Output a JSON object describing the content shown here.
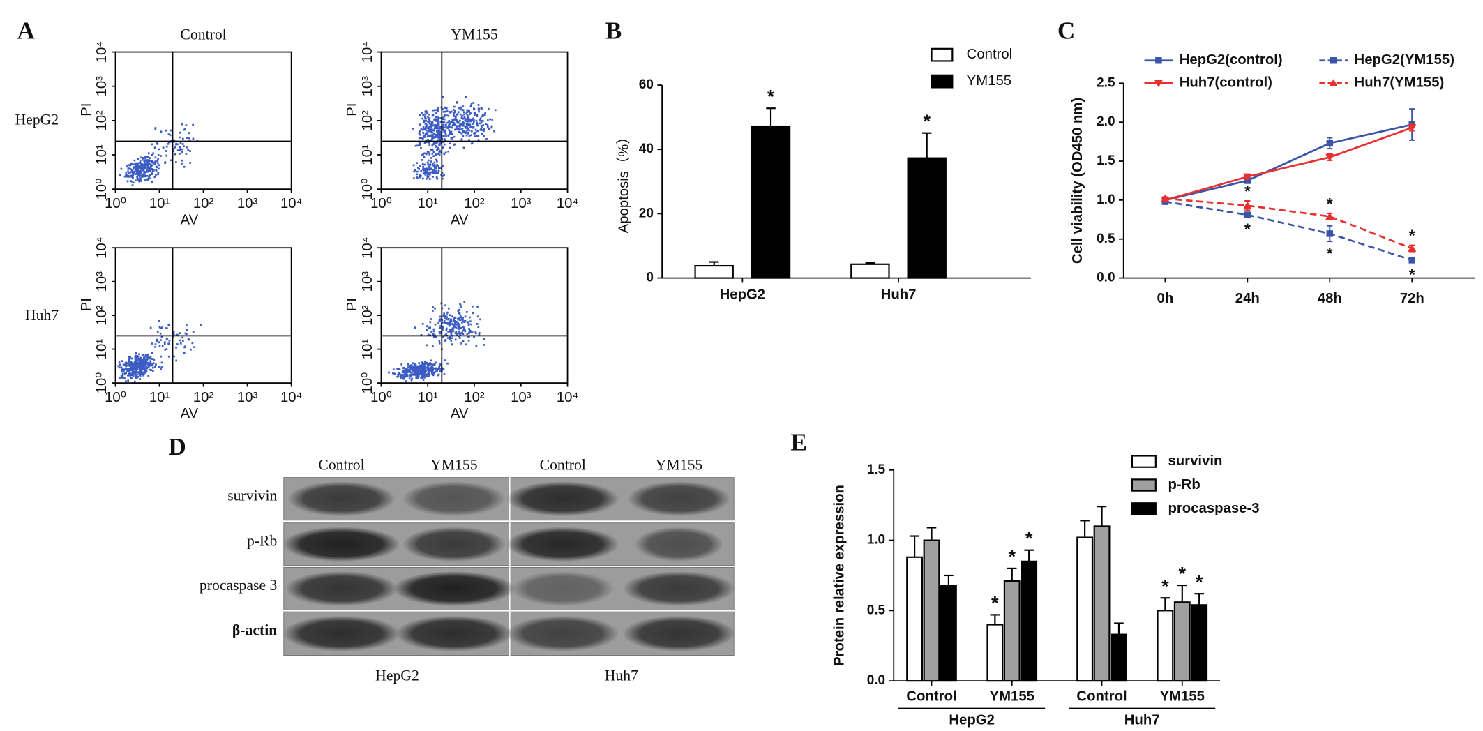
{
  "chart_data": [
    {
      "panel": "A",
      "type": "flow",
      "columns": [
        "Control",
        "YM155"
      ],
      "rows": [
        "HepG2",
        "Huh7"
      ],
      "xlabel": "AV",
      "ylabel": "PI",
      "log_scale": true,
      "xlim": [
        1,
        10000
      ],
      "ylim": [
        1,
        10000
      ],
      "xticks": [
        {
          "value": 1,
          "label": "10⁰"
        },
        {
          "value": 10,
          "label": "10¹"
        },
        {
          "value": 100,
          "label": "10²"
        },
        {
          "value": 1000,
          "label": "10³"
        },
        {
          "value": 10000,
          "label": "10⁴"
        }
      ],
      "yticks": [
        {
          "value": 1,
          "label": "10⁰"
        },
        {
          "value": 10,
          "label": "10¹"
        },
        {
          "value": 100,
          "label": "10²"
        },
        {
          "value": 1000,
          "label": "10³"
        },
        {
          "value": 10000,
          "label": "10⁴"
        }
      ],
      "quadrant_x": 20,
      "quadrant_y": 25,
      "color": "#3b5cc4"
    },
    {
      "panel": "B",
      "type": "bar",
      "ylabel": "Apoptosis（%）",
      "categories": [
        "HepG2",
        "Huh7"
      ],
      "series": [
        {
          "name": "Control",
          "color": "#ffffff",
          "values": [
            3.8,
            4.3
          ],
          "errors": [
            1.2,
            0.4
          ]
        },
        {
          "name": "YM155",
          "color": "#000000",
          "values": [
            47.2,
            37.3
          ],
          "errors": [
            5.6,
            7.8
          ],
          "significance": [
            "*",
            "*"
          ]
        }
      ],
      "ylim": [
        0,
        60
      ],
      "yticks": [
        0,
        20,
        40,
        60
      ],
      "legend": "top-right"
    },
    {
      "panel": "C",
      "type": "line",
      "ylabel": "Cell viability (OD450 nm)",
      "categories": [
        "0h",
        "24h",
        "48h",
        "72h"
      ],
      "series": [
        {
          "name": "HepG2(control)",
          "color": "#3a55a8",
          "marker": "square",
          "dashed": false,
          "values": [
            1.0,
            1.25,
            1.73,
            1.97
          ],
          "errors": [
            0.03,
            0.03,
            0.07,
            0.2
          ]
        },
        {
          "name": "Huh7(control)",
          "color": "#e8302f",
          "marker": "triangle-down",
          "dashed": false,
          "values": [
            1.0,
            1.3,
            1.55,
            1.93
          ],
          "errors": [
            0.03,
            0.03,
            0.04,
            0.04
          ]
        },
        {
          "name": "HepG2(YM155)",
          "color": "#3a55a8",
          "marker": "square",
          "dashed": true,
          "values": [
            0.98,
            0.81,
            0.57,
            0.23
          ],
          "errors": [
            0.02,
            0.03,
            0.1,
            0.03
          ],
          "significance": [
            null,
            "*",
            "*",
            "*"
          ]
        },
        {
          "name": "Huh7(YM155)",
          "color": "#e8302f",
          "marker": "triangle-up",
          "dashed": true,
          "values": [
            1.02,
            0.93,
            0.79,
            0.38
          ],
          "errors": [
            0.02,
            0.06,
            0.04,
            0.04
          ],
          "significance": [
            null,
            "*",
            "*",
            "*"
          ]
        }
      ],
      "ylim": [
        0,
        2.5
      ],
      "yticks": [
        {
          "value": 0,
          "label": "0.0"
        },
        0.5,
        {
          "value": 1,
          "label": "1.0"
        },
        1.5,
        {
          "value": 2,
          "label": "2.0"
        },
        2.5
      ],
      "legend": "top"
    },
    {
      "panel": "E",
      "type": "bar",
      "ylabel": "Protein relative expression",
      "categories": [
        "Control",
        "YM155",
        "Control",
        "YM155"
      ],
      "groups": [
        "HepG2",
        "Huh7"
      ],
      "series": [
        {
          "name": "survivin",
          "color": "#ffffff",
          "values": [
            0.88,
            0.4,
            1.02,
            0.5
          ],
          "errors": [
            0.15,
            0.07,
            0.12,
            0.09
          ],
          "significance": [
            null,
            "*",
            null,
            "*"
          ]
        },
        {
          "name": "p-Rb",
          "color": "#a0a0a0",
          "values": [
            1.0,
            0.71,
            1.1,
            0.56
          ],
          "errors": [
            0.09,
            0.09,
            0.14,
            0.12
          ],
          "significance": [
            null,
            "*",
            null,
            "*"
          ]
        },
        {
          "name": "procaspase-3",
          "color": "#000000",
          "values": [
            0.68,
            0.85,
            0.33,
            0.54
          ],
          "errors": [
            0.07,
            0.08,
            0.08,
            0.08
          ],
          "significance": [
            null,
            "*",
            null,
            "*"
          ]
        }
      ],
      "ylim": [
        0,
        1.5
      ],
      "yticks": [
        {
          "value": 0,
          "label": "0.0"
        },
        0.5,
        {
          "value": 1,
          "label": "1.0"
        },
        1.5
      ],
      "legend": "top-right"
    }
  ],
  "western_blot": {
    "panel": "D",
    "columns": [
      "Control",
      "YM155",
      "Control",
      "YM155"
    ],
    "rows": [
      "survivin",
      "p-Rb",
      "procaspase 3",
      "β-actin"
    ],
    "groups": [
      "HepG2",
      "Huh7"
    ]
  }
}
